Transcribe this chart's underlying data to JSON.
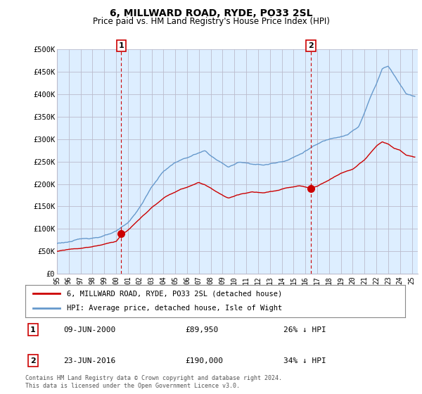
{
  "title": "6, MILLWARD ROAD, RYDE, PO33 2SL",
  "subtitle": "Price paid vs. HM Land Registry's House Price Index (HPI)",
  "ylabel_ticks": [
    "£0",
    "£50K",
    "£100K",
    "£150K",
    "£200K",
    "£250K",
    "£300K",
    "£350K",
    "£400K",
    "£450K",
    "£500K"
  ],
  "ytick_values": [
    0,
    50000,
    100000,
    150000,
    200000,
    250000,
    300000,
    350000,
    400000,
    450000,
    500000
  ],
  "xlim_start": 1995.0,
  "xlim_end": 2025.5,
  "ylim": [
    0,
    500000
  ],
  "hpi_color": "#6699CC",
  "price_color": "#CC0000",
  "chart_bg_color": "#ddeeff",
  "transaction1_date": 2000.44,
  "transaction1_price": 89950,
  "transaction2_date": 2016.47,
  "transaction2_price": 190000,
  "legend_hpi_label": "HPI: Average price, detached house, Isle of Wight",
  "legend_price_label": "6, MILLWARD ROAD, RYDE, PO33 2SL (detached house)",
  "table_row1": [
    "1",
    "09-JUN-2000",
    "£89,950",
    "26% ↓ HPI"
  ],
  "table_row2": [
    "2",
    "23-JUN-2016",
    "£190,000",
    "34% ↓ HPI"
  ],
  "footnote": "Contains HM Land Registry data © Crown copyright and database right 2024.\nThis data is licensed under the Open Government Licence v3.0.",
  "background_color": "#ffffff",
  "grid_color": "#bbbbcc"
}
